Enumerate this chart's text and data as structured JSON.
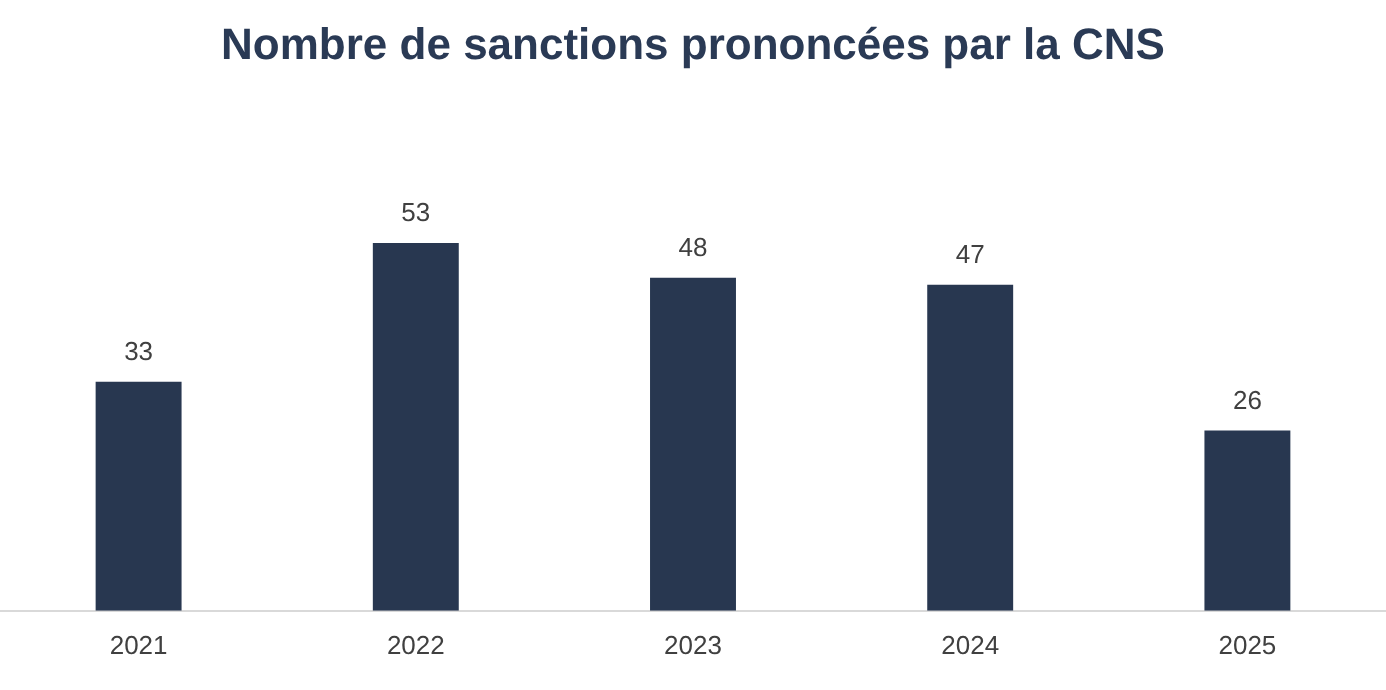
{
  "chart_data": {
    "type": "bar",
    "title": "Nombre de sanctions prononcées par la CNS",
    "categories": [
      "2021",
      "2022",
      "2023",
      "2024",
      "2025"
    ],
    "values": [
      33,
      53,
      48,
      47,
      26
    ],
    "color": "#283750",
    "data_labels": true,
    "grid": false,
    "legend": false
  }
}
